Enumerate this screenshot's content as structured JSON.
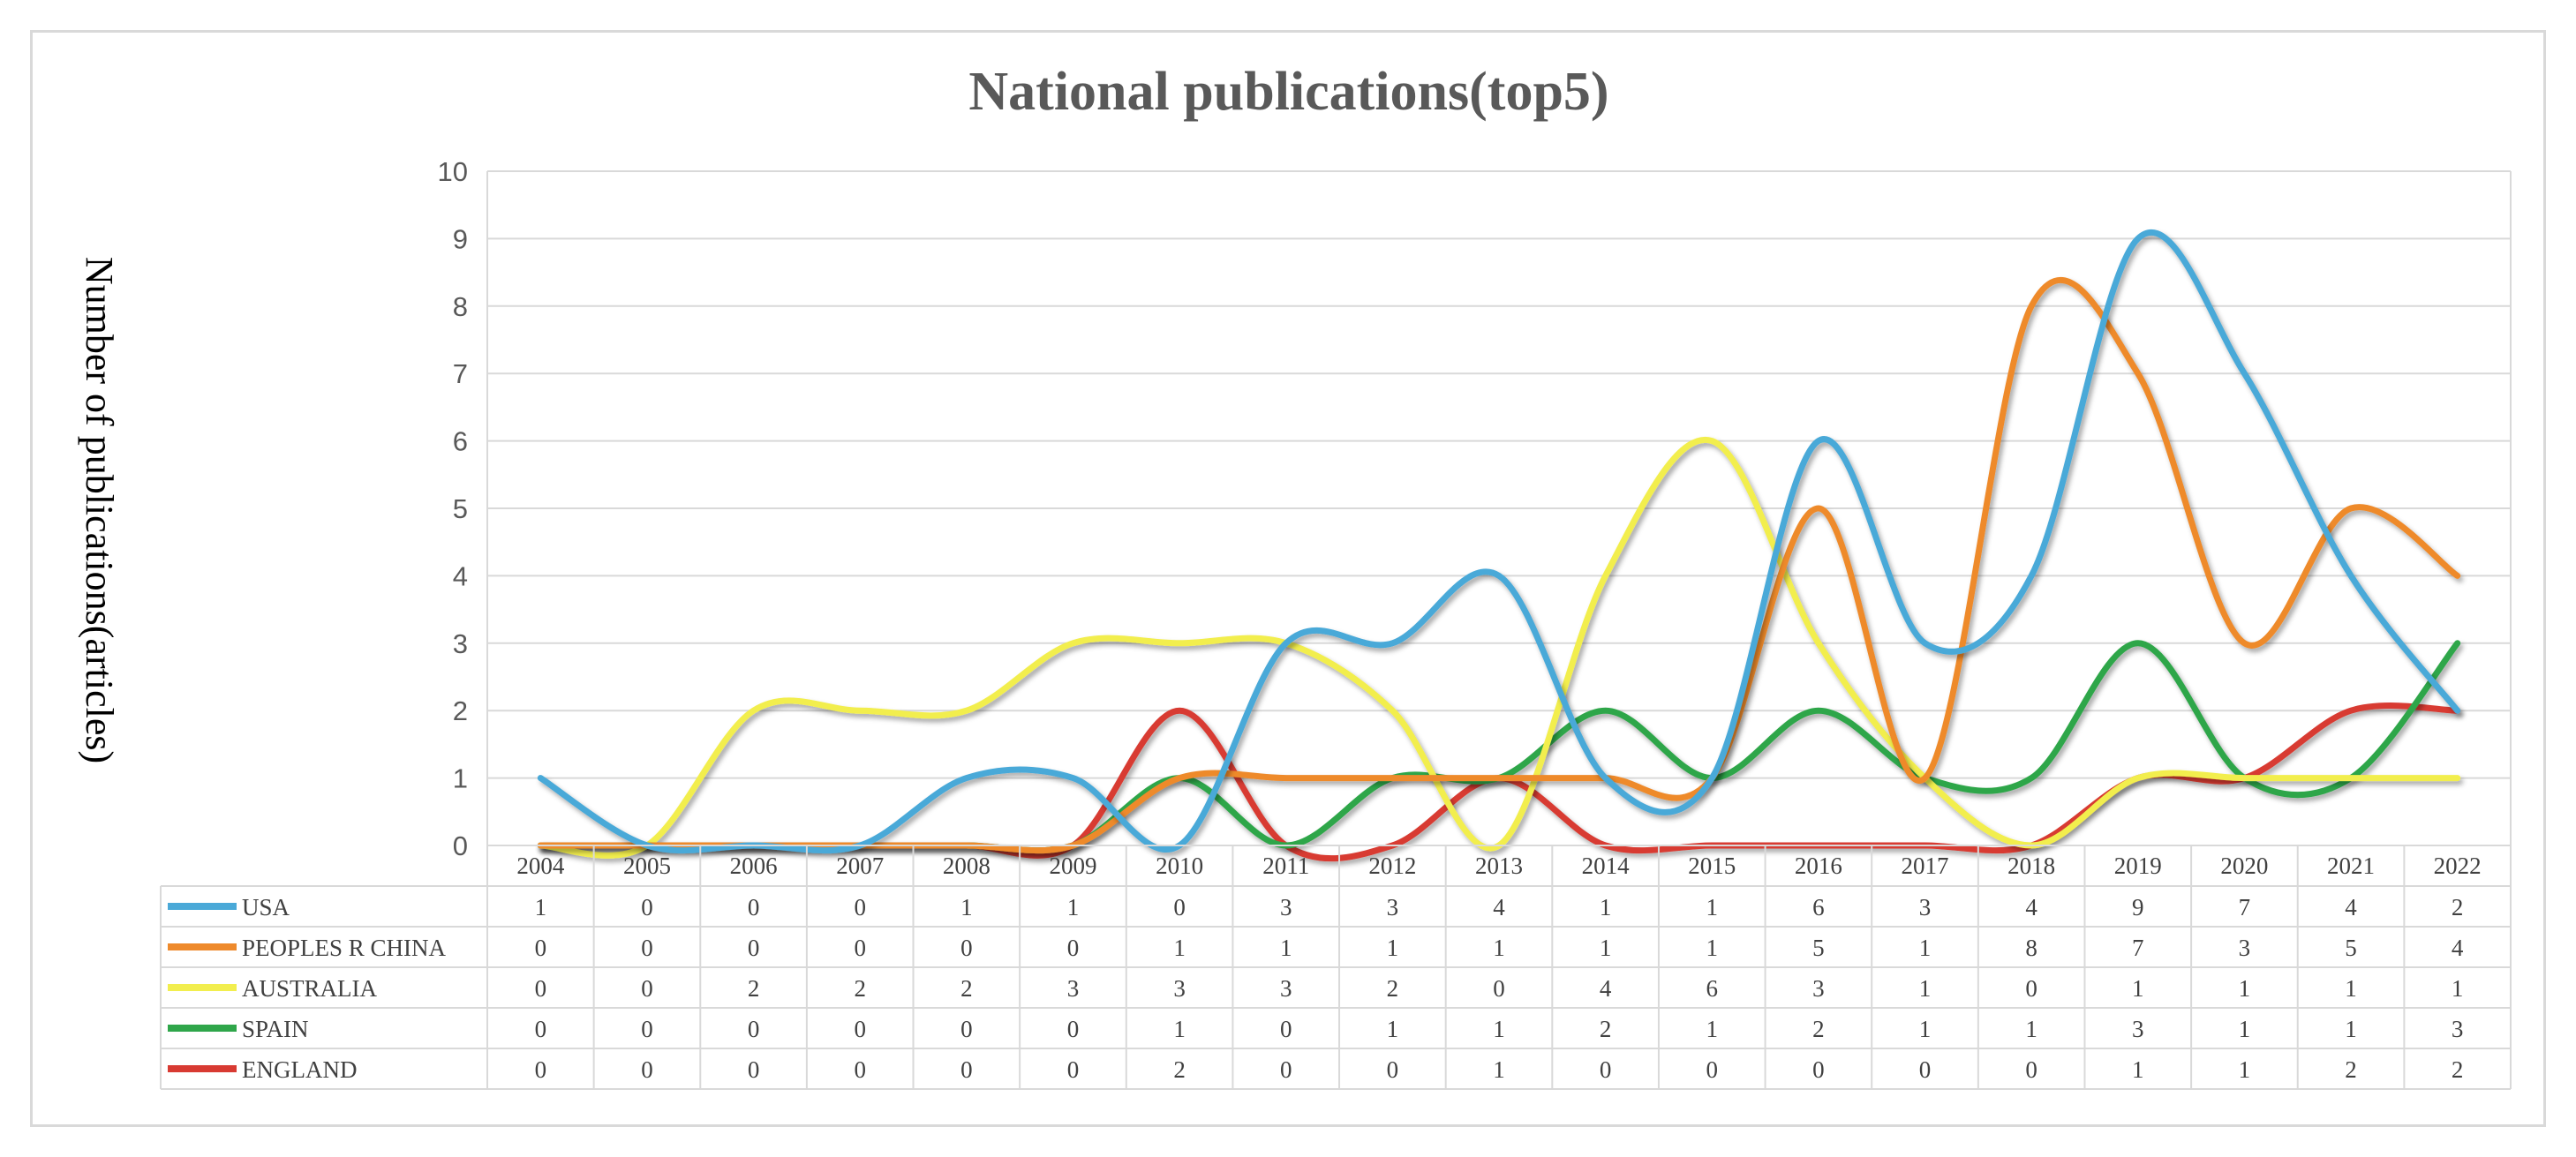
{
  "chart_data": {
    "type": "line",
    "title": "National publications(top5)",
    "xlabel": "",
    "ylabel": "Number of publications(articles)",
    "ylim": [
      0,
      10
    ],
    "yticks": [
      0,
      1,
      2,
      3,
      4,
      5,
      6,
      7,
      8,
      9,
      10
    ],
    "grid": true,
    "legend": "data-table-left",
    "categories": [
      "2004",
      "2005",
      "2006",
      "2007",
      "2008",
      "2009",
      "2010",
      "2011",
      "2012",
      "2013",
      "2014",
      "2015",
      "2016",
      "2017",
      "2018",
      "2019",
      "2020",
      "2021",
      "2022"
    ],
    "series": [
      {
        "name": "USA",
        "color": "#4aa9d8",
        "values": [
          1,
          0,
          0,
          0,
          1,
          1,
          0,
          3,
          3,
          4,
          1,
          1,
          6,
          3,
          4,
          9,
          7,
          4,
          2
        ]
      },
      {
        "name": "PEOPLES R CHINA",
        "color": "#ee8a2c",
        "values": [
          0,
          0,
          0,
          0,
          0,
          0,
          1,
          1,
          1,
          1,
          1,
          1,
          5,
          1,
          8,
          7,
          3,
          5,
          4
        ]
      },
      {
        "name": "AUSTRALIA",
        "color": "#f2ee4e",
        "values": [
          0,
          0,
          2,
          2,
          2,
          3,
          3,
          3,
          2,
          0,
          4,
          6,
          3,
          1,
          0,
          1,
          1,
          1,
          1
        ]
      },
      {
        "name": "SPAIN",
        "color": "#2fa64a",
        "values": [
          0,
          0,
          0,
          0,
          0,
          0,
          1,
          0,
          1,
          1,
          2,
          1,
          2,
          1,
          1,
          3,
          1,
          1,
          3
        ]
      },
      {
        "name": "ENGLAND",
        "color": "#d83a32",
        "values": [
          0,
          0,
          0,
          0,
          0,
          0,
          2,
          0,
          0,
          1,
          0,
          0,
          0,
          0,
          0,
          1,
          1,
          2,
          2
        ]
      }
    ]
  }
}
